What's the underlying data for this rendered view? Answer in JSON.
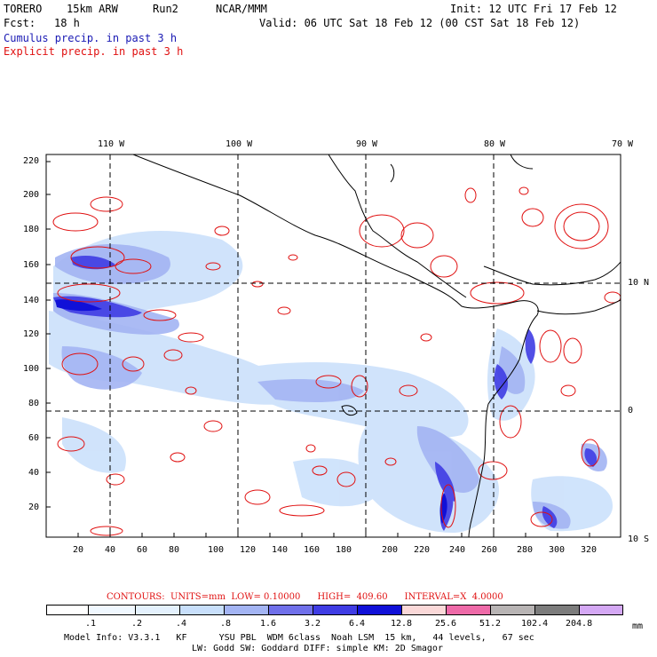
{
  "header": {
    "model": "TORERO",
    "resolution": "15km ARW",
    "run": "Run2",
    "org": "NCAR/MMM",
    "init": "Init: 12 UTC Fri 17 Feb 12",
    "fcst_label": "Fcst:",
    "fcst_value": "18 h",
    "valid": "Valid: 06 UTC Sat 18 Feb 12 (00 CST Sat 18 Feb 12)",
    "cumulus_label": "Cumulus precip. in past 3 h",
    "explicit_label": "Explicit precip. in past 3 h"
  },
  "colors": {
    "cumulus_text": "#1a1ab4",
    "explicit_text": "#e01010",
    "contour": "#e01010",
    "coast": "#000000",
    "grid": "#000000"
  },
  "axes": {
    "lon_labels": [
      "110 W",
      "100 W",
      "90 W",
      "80 W",
      "70 W"
    ],
    "lat_labels": [
      "10 N",
      "0",
      "10 S"
    ],
    "x_ticks": [
      "20",
      "40",
      "60",
      "80",
      "100",
      "120",
      "140",
      "160",
      "180",
      "200",
      "220",
      "240",
      "260",
      "280",
      "300",
      "320"
    ],
    "y_ticks": [
      "220",
      "200",
      "180",
      "160",
      "140",
      "120",
      "100",
      "80",
      "60",
      "40",
      "20"
    ]
  },
  "contour_info": {
    "text": "CONTOURS:  UNITS=mm  LOW= 0.10000      HIGH=  409.60      INTERVAL=X  4.0000"
  },
  "colorbar": {
    "labels": [
      ".1",
      ".2",
      ".4",
      ".8",
      "1.6",
      "3.2",
      "6.4",
      "12.8",
      "25.6",
      "51.2",
      "102.4",
      "204.8"
    ],
    "colors": [
      "#ffffff",
      "#ffffff",
      "#f0f8ff",
      "#e4f1fd",
      "#c8dffb",
      "#a3b4f3",
      "#7070ea",
      "#3f3ce4",
      "#1010d8",
      "#fad8d8",
      "#ee6aa8",
      "#b8b4b4",
      "#7c7c7c",
      "#d4a8f4"
    ],
    "unit": "mm"
  },
  "footer": {
    "line1": "Model Info: V3.3.1   KF      YSU PBL  WDM 6class  Noah LSM  15 km,   44 levels,   67 sec",
    "line2": "LW: Godd SW: Goddard DIFF: simple KM: 2D Smagor"
  }
}
